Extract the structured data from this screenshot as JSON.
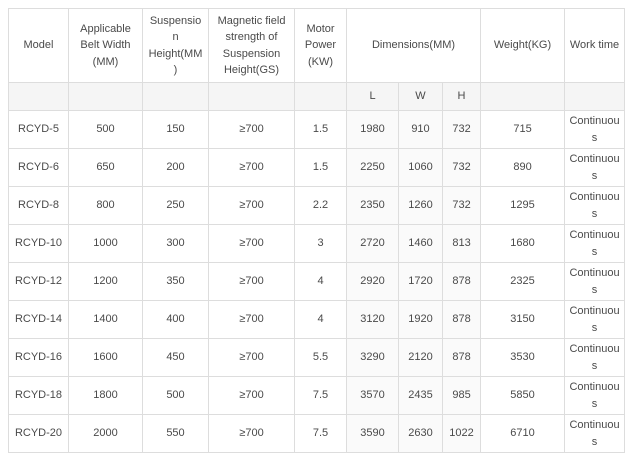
{
  "colors": {
    "border": "#dddddd",
    "subheader_background": "#f5f5f5",
    "dimension_cell_background": "#fafafa",
    "text": "#4a4a4a",
    "page_background": "#ffffff"
  },
  "chart_data": {
    "type": "table",
    "title": "",
    "columns": [
      "Model",
      "Applicable Belt Width (MM)",
      "Suspension Height(MM)",
      "Magnetic field strength of Suspension Height(GS)",
      "Motor Power (KW)",
      "Dimensions(MM)",
      "Weight(KG)",
      "Work time"
    ],
    "dimension_subcolumns": [
      "L",
      "W",
      "H"
    ],
    "rows": [
      [
        "RCYD-5",
        "500",
        "150",
        "≥700",
        "1.5",
        "1980",
        "910",
        "732",
        "715",
        "Continuous"
      ],
      [
        "RCYD-6",
        "650",
        "200",
        "≥700",
        "1.5",
        "2250",
        "1060",
        "732",
        "890",
        "Continuous"
      ],
      [
        "RCYD-8",
        "800",
        "250",
        "≥700",
        "2.2",
        "2350",
        "1260",
        "732",
        "1295",
        "Continuous"
      ],
      [
        "RCYD-10",
        "1000",
        "300",
        "≥700",
        "3",
        "2720",
        "1460",
        "813",
        "1680",
        "Continuous"
      ],
      [
        "RCYD-12",
        "1200",
        "350",
        "≥700",
        "4",
        "2920",
        "1720",
        "878",
        "2325",
        "Continuous"
      ],
      [
        "RCYD-14",
        "1400",
        "400",
        "≥700",
        "4",
        "3120",
        "1920",
        "878",
        "3150",
        "Continuous"
      ],
      [
        "RCYD-16",
        "1600",
        "450",
        "≥700",
        "5.5",
        "3290",
        "2120",
        "878",
        "3530",
        "Continuous"
      ],
      [
        "RCYD-18",
        "1800",
        "500",
        "≥700",
        "7.5",
        "3570",
        "2435",
        "985",
        "5850",
        "Continuous"
      ],
      [
        "RCYD-20",
        "2000",
        "550",
        "≥700",
        "7.5",
        "3590",
        "2630",
        "1022",
        "6710",
        "Continuous"
      ]
    ]
  }
}
